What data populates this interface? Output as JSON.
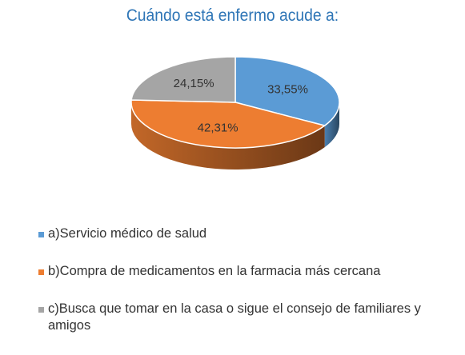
{
  "chart_data": {
    "type": "pie",
    "title": "Cuándo está enfermo acude a:",
    "slices": [
      {
        "label": "a)Servicio médico de salud",
        "value": 33.55,
        "value_label": "33,55%",
        "color": "#5B9BD5"
      },
      {
        "label": "b)Compra de medicamentos en la farmacia más cercana",
        "value": 42.31,
        "value_label": "42,31%",
        "color": "#ED7D31"
      },
      {
        "label": "c)Busca que tomar en la casa o sigue el consejo de familiares y amigos",
        "value": 24.15,
        "value_label": "24,15%",
        "color": "#A5A5A5"
      }
    ],
    "legend_position": "bottom"
  }
}
